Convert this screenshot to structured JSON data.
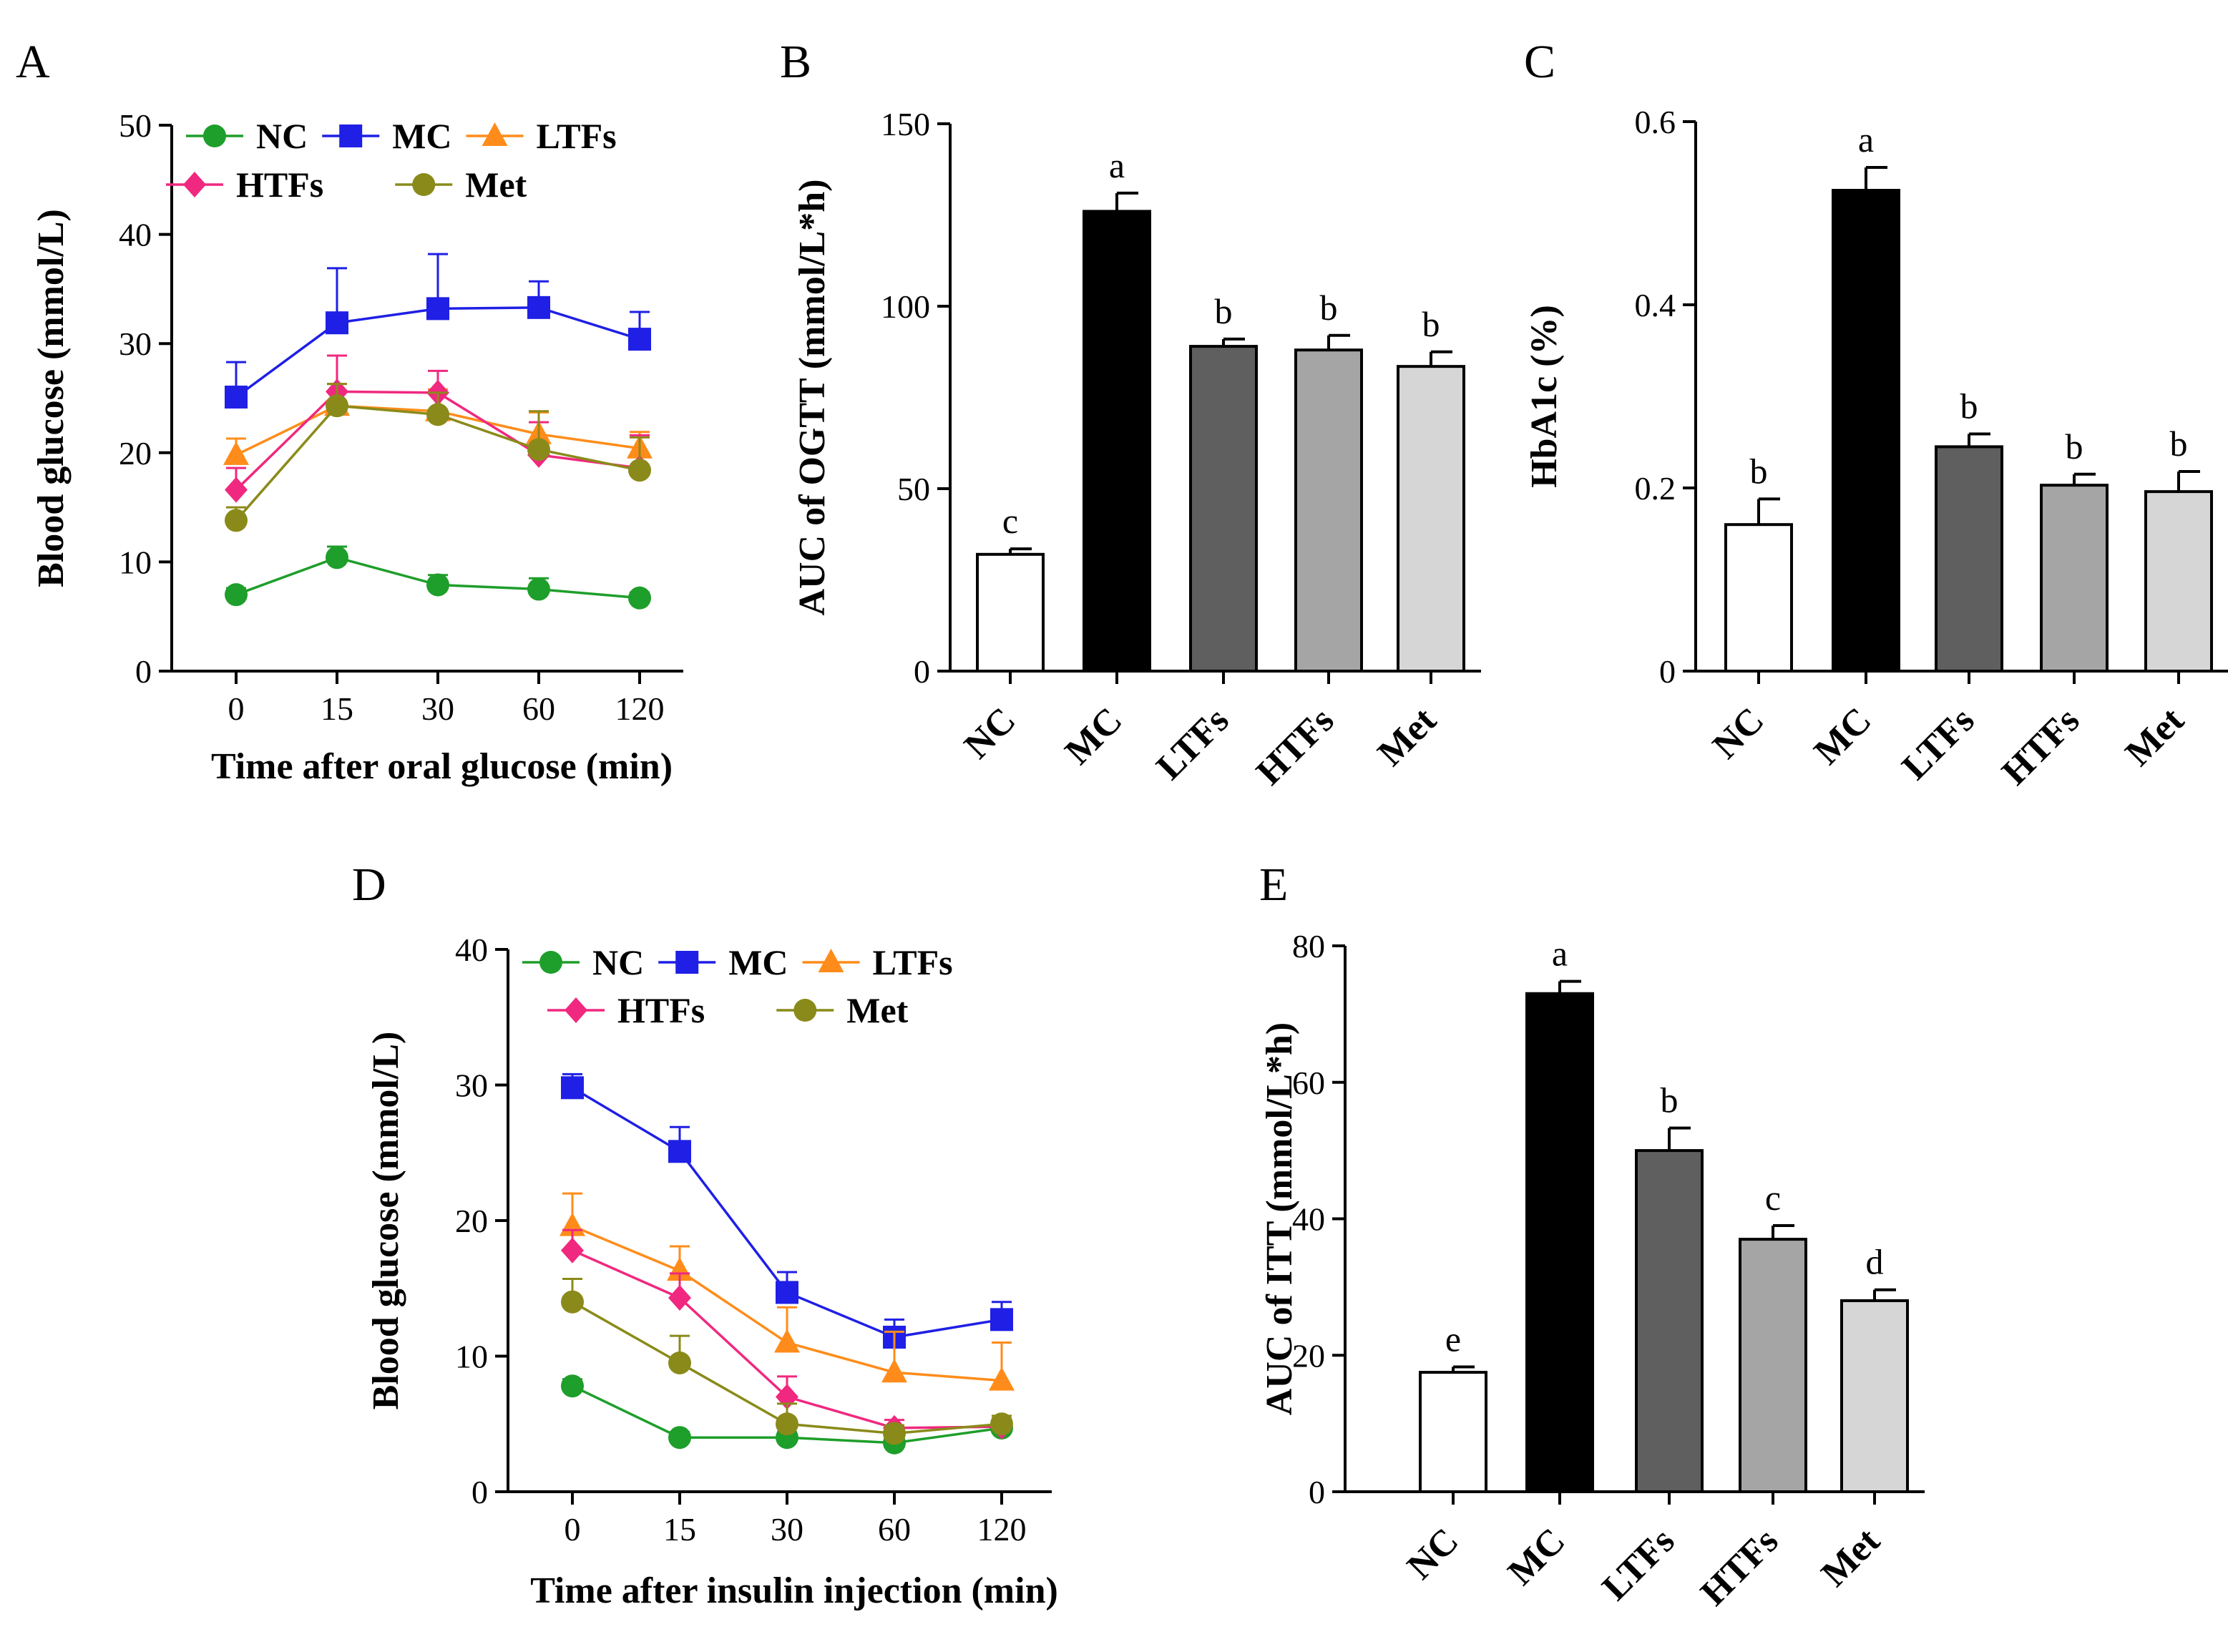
{
  "figure": {
    "panels": [
      "A",
      "B",
      "C",
      "D",
      "E"
    ]
  },
  "chart_data": [
    {
      "id": "A",
      "type": "line",
      "xlabel": "Time after oral glucose (min)",
      "ylabel": "Blood glucose (mmol/L)",
      "ylim": [
        0,
        50
      ],
      "yticks": [
        0,
        10,
        20,
        30,
        40,
        50
      ],
      "categories": [
        "0",
        "15",
        "30",
        "60",
        "120"
      ],
      "series": [
        {
          "name": "NC",
          "color": "#1e9e2a",
          "marker": "circle",
          "values": [
            7.0,
            10.4,
            7.9,
            7.5,
            6.7
          ],
          "errors": [
            0.6,
            1.0,
            0.9,
            1.0,
            0.5
          ]
        },
        {
          "name": "MC",
          "color": "#1f1fe6",
          "marker": "square",
          "values": [
            25.1,
            31.9,
            33.2,
            33.3,
            30.4
          ],
          "errors": [
            3.2,
            5.0,
            5.0,
            2.4,
            2.5
          ]
        },
        {
          "name": "LTFs",
          "color": "#ff8c1a",
          "marker": "triangle",
          "values": [
            19.8,
            24.3,
            23.8,
            21.7,
            20.4
          ],
          "errors": [
            1.5,
            2.0,
            2.0,
            2.0,
            1.5
          ]
        },
        {
          "name": "HTFs",
          "color": "#f0287f",
          "marker": "diamond",
          "values": [
            16.6,
            25.6,
            25.5,
            19.8,
            18.6
          ],
          "errors": [
            2.0,
            3.3,
            2.0,
            3.0,
            3.0
          ]
        },
        {
          "name": "Met",
          "color": "#8a8a1a",
          "marker": "circle",
          "values": [
            13.8,
            24.3,
            23.5,
            20.3,
            18.4
          ],
          "errors": [
            1.2,
            2.0,
            2.0,
            3.5,
            3.0
          ]
        }
      ],
      "legend": [
        [
          "NC",
          "MC",
          "LTFs"
        ],
        [
          "HTFs",
          "Met"
        ]
      ]
    },
    {
      "id": "B",
      "type": "bar",
      "xlabel": "",
      "ylabel": "AUC of  OGTT (mmol/L*h)",
      "ylim": [
        0,
        150
      ],
      "yticks": [
        0,
        50,
        100,
        150
      ],
      "categories": [
        "NC",
        "MC",
        "LTFs",
        "HTFs",
        "Met"
      ],
      "values": [
        32.0,
        126.0,
        89.0,
        88.0,
        83.5
      ],
      "errors": [
        1.5,
        5.0,
        2.0,
        4.0,
        4.0
      ],
      "fills": [
        "#ffffff",
        "#000000",
        "#5f5f5f",
        "#a5a5a5",
        "#d6d6d6"
      ],
      "annotations": [
        "c",
        "a",
        "b",
        "b",
        "b"
      ]
    },
    {
      "id": "C",
      "type": "bar",
      "xlabel": "",
      "ylabel": "HbA1c (%)",
      "ylim": [
        0,
        0.6
      ],
      "yticks": [
        "0",
        "0.2",
        "0.4",
        "0.6"
      ],
      "categories": [
        "NC",
        "MC",
        "LTFs",
        "HTFs",
        "Met"
      ],
      "values": [
        0.16,
        0.525,
        0.245,
        0.203,
        0.196
      ],
      "errors": [
        0.028,
        0.025,
        0.014,
        0.012,
        0.022
      ],
      "fills": [
        "#ffffff",
        "#000000",
        "#5f5f5f",
        "#a5a5a5",
        "#d6d6d6"
      ],
      "annotations": [
        "b",
        "a",
        "b",
        "b",
        "b"
      ]
    },
    {
      "id": "D",
      "type": "line",
      "xlabel": "Time after insulin injection  (min)",
      "ylabel": "Blood glucose (mmol/L)",
      "ylim": [
        0,
        40
      ],
      "yticks": [
        0,
        10,
        20,
        30,
        40
      ],
      "categories": [
        "0",
        "15",
        "30",
        "60",
        "120"
      ],
      "series": [
        {
          "name": "NC",
          "color": "#1e9e2a",
          "marker": "circle",
          "values": [
            7.8,
            4.0,
            4.0,
            3.6,
            4.7
          ],
          "errors": [
            0.5,
            0.4,
            0.4,
            0.4,
            0.4
          ]
        },
        {
          "name": "MC",
          "color": "#1f1fe6",
          "marker": "square",
          "values": [
            29.8,
            25.1,
            14.7,
            11.4,
            12.7
          ],
          "errors": [
            1.0,
            1.8,
            1.5,
            1.3,
            1.3
          ]
        },
        {
          "name": "LTFs",
          "color": "#ff8c1a",
          "marker": "triangle",
          "values": [
            19.6,
            16.3,
            11.0,
            8.8,
            8.2
          ],
          "errors": [
            2.4,
            1.8,
            2.6,
            3.0,
            2.8
          ]
        },
        {
          "name": "HTFs",
          "color": "#f0287f",
          "marker": "diamond",
          "values": [
            17.8,
            14.3,
            7.0,
            4.7,
            4.8
          ],
          "errors": [
            1.5,
            1.8,
            1.5,
            0.6,
            0.6
          ]
        },
        {
          "name": "Met",
          "color": "#8a8a1a",
          "marker": "circle",
          "values": [
            14.0,
            9.5,
            5.0,
            4.3,
            5.0
          ],
          "errors": [
            1.7,
            2.0,
            1.5,
            0.6,
            0.6
          ]
        }
      ],
      "legend": [
        [
          "NC",
          "MC",
          "LTFs"
        ],
        [
          "HTFs",
          "Met"
        ]
      ]
    },
    {
      "id": "E",
      "type": "bar",
      "xlabel": "",
      "ylabel": "AUC of  ITT (mmol/L*h)",
      "ylim": [
        0,
        80
      ],
      "yticks": [
        0,
        20,
        40,
        60,
        80
      ],
      "categories": [
        "NC",
        "MC",
        "LTFs",
        "HTFs",
        "Met"
      ],
      "values": [
        17.5,
        73.0,
        50.0,
        37.0,
        28.0
      ],
      "errors": [
        0.8,
        1.8,
        3.3,
        2.0,
        1.6
      ],
      "fills": [
        "#ffffff",
        "#000000",
        "#5f5f5f",
        "#a5a5a5",
        "#d6d6d6"
      ],
      "annotations": [
        "e",
        "a",
        "b",
        "c",
        "d"
      ]
    }
  ]
}
